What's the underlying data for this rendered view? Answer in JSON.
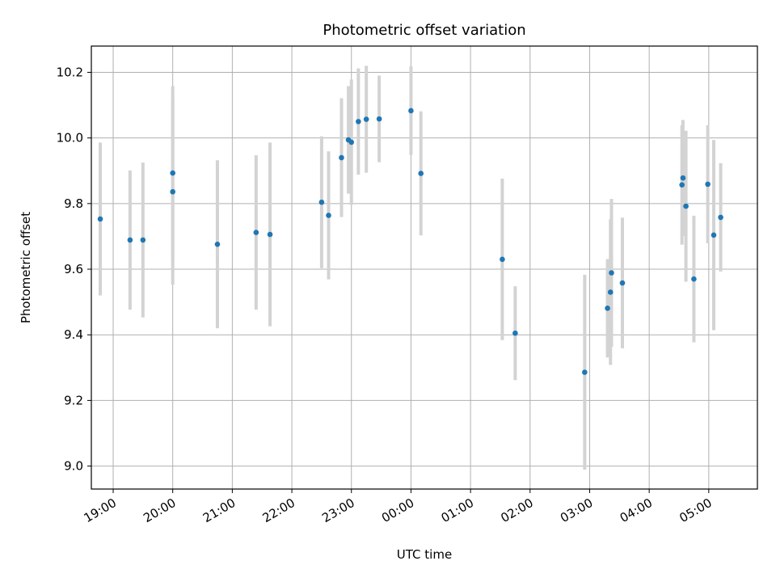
{
  "chart_data": {
    "type": "scatter",
    "title": "Photometric offset variation",
    "xlabel": "UTC time",
    "ylabel": "Photometric offset",
    "x_unit": "UTC clock time (hh:mm), night spanning midnight",
    "xlim": [
      "18:38",
      "05:49"
    ],
    "ylim": [
      8.93,
      10.28
    ],
    "grid": true,
    "x_ticks": [
      "19:00",
      "20:00",
      "21:00",
      "22:00",
      "23:00",
      "00:00",
      "01:00",
      "02:00",
      "03:00",
      "04:00",
      "05:00"
    ],
    "y_ticks": [
      9.0,
      9.2,
      9.4,
      9.6,
      9.8,
      10.0,
      10.2
    ],
    "y_tick_labels": [
      "9.0",
      "9.2",
      "9.4",
      "9.6",
      "9.8",
      "10.0",
      "10.2"
    ],
    "marker_color": "#1f77b4",
    "errorbar_color": "#d3d3d3",
    "points": [
      {
        "t": "18:47",
        "y": 9.753,
        "err": 0.233
      },
      {
        "t": "19:17",
        "y": 9.689,
        "err": 0.212
      },
      {
        "t": "19:30",
        "y": 9.689,
        "err": 0.236
      },
      {
        "t": "20:00",
        "y": 9.893,
        "err": 0.265
      },
      {
        "t": "20:00",
        "y": 9.836,
        "err": 0.283
      },
      {
        "t": "20:45",
        "y": 9.676,
        "err": 0.256
      },
      {
        "t": "21:24",
        "y": 9.712,
        "err": 0.235
      },
      {
        "t": "21:38",
        "y": 9.706,
        "err": 0.28
      },
      {
        "t": "22:30",
        "y": 9.804,
        "err": 0.201
      },
      {
        "t": "22:37",
        "y": 9.764,
        "err": 0.195
      },
      {
        "t": "22:50",
        "y": 9.94,
        "err": 0.181
      },
      {
        "t": "22:57",
        "y": 9.994,
        "err": 0.164
      },
      {
        "t": "23:00",
        "y": 9.987,
        "err": 0.191
      },
      {
        "t": "23:07",
        "y": 10.05,
        "err": 0.162
      },
      {
        "t": "23:15",
        "y": 10.057,
        "err": 0.163
      },
      {
        "t": "23:28",
        "y": 10.058,
        "err": 0.132
      },
      {
        "t": "00:00",
        "y": 10.083,
        "err": 0.135
      },
      {
        "t": "00:10",
        "y": 9.892,
        "err": 0.189
      },
      {
        "t": "01:32",
        "y": 9.63,
        "err": 0.246
      },
      {
        "t": "01:45",
        "y": 9.405,
        "err": 0.143
      },
      {
        "t": "02:55",
        "y": 9.286,
        "err": 0.297
      },
      {
        "t": "03:18",
        "y": 9.481,
        "err": 0.15
      },
      {
        "t": "03:21",
        "y": 9.53,
        "err": 0.222
      },
      {
        "t": "03:22",
        "y": 9.589,
        "err": 0.225
      },
      {
        "t": "03:33",
        "y": 9.558,
        "err": 0.199
      },
      {
        "t": "04:33",
        "y": 9.857,
        "err": 0.182
      },
      {
        "t": "04:34",
        "y": 9.878,
        "err": 0.177
      },
      {
        "t": "04:37",
        "y": 9.792,
        "err": 0.23
      },
      {
        "t": "04:45",
        "y": 9.57,
        "err": 0.193
      },
      {
        "t": "04:59",
        "y": 9.859,
        "err": 0.18
      },
      {
        "t": "05:05",
        "y": 9.704,
        "err": 0.29
      },
      {
        "t": "05:12",
        "y": 9.758,
        "err": 0.165
      }
    ]
  }
}
